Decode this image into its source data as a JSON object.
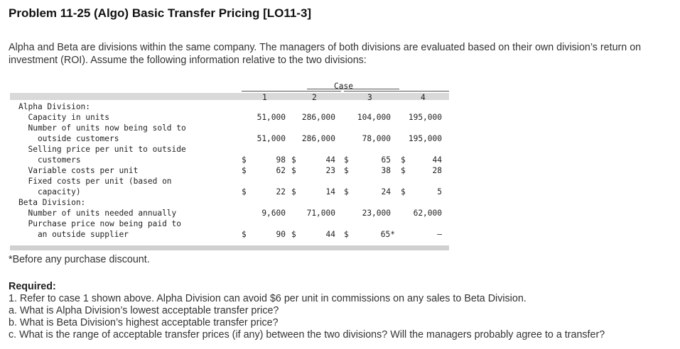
{
  "title": "Problem 11-25 (Algo) Basic Transfer Pricing [LO11-3]",
  "intro": "Alpha and Beta are divisions within the same company. The managers of both divisions are evaluated based on their own division’s return on investment (ROI). Assume the following information relative to the two divisions:",
  "table": {
    "case_header": "Case",
    "columns": [
      "1",
      "2",
      "3",
      "4"
    ],
    "rows": [
      {
        "label": "Alpha Division:"
      },
      {
        "label": "  Capacity in units",
        "cells": [
          "51,000",
          "286,000",
          "104,000",
          "195,000"
        ]
      },
      {
        "label": "  Number of units now being sold to"
      },
      {
        "label": "    outside customers",
        "cells": [
          "51,000",
          "286,000",
          "78,000",
          "195,000"
        ]
      },
      {
        "label": "  Selling price per unit to outside"
      },
      {
        "label": "    customers",
        "dollar": "$",
        "cells": [
          "98",
          "44",
          "65",
          "44"
        ]
      },
      {
        "label": "  Variable costs per unit",
        "dollar": "$",
        "cells": [
          "62",
          "23",
          "38",
          "28"
        ]
      },
      {
        "label": "  Fixed costs per unit (based on"
      },
      {
        "label": "    capacity)",
        "dollar": "$",
        "cells": [
          "22",
          "14",
          "24",
          "5"
        ]
      },
      {
        "label": "Beta Division:"
      },
      {
        "label": "  Number of units needed annually",
        "cells": [
          "9,600",
          "71,000",
          "23,000",
          "62,000"
        ]
      },
      {
        "label": "  Purchase price now being paid to"
      },
      {
        "label": "    an outside supplier",
        "dollar": "$",
        "cells": [
          "90",
          "44",
          "65*",
          "–"
        ]
      }
    ]
  },
  "footnote": "*Before any purchase discount.",
  "required": {
    "heading": "Required:",
    "items": [
      "1. Refer to case 1 shown above. Alpha Division can avoid $6 per unit in commissions on any sales to Beta Division.",
      "a. What is Alpha Division’s lowest acceptable transfer price?",
      "b. What is Beta Division’s highest acceptable transfer price?",
      "c. What is the range of acceptable transfer prices (if any) between the two divisions? Will the managers probably agree to a transfer?"
    ]
  }
}
